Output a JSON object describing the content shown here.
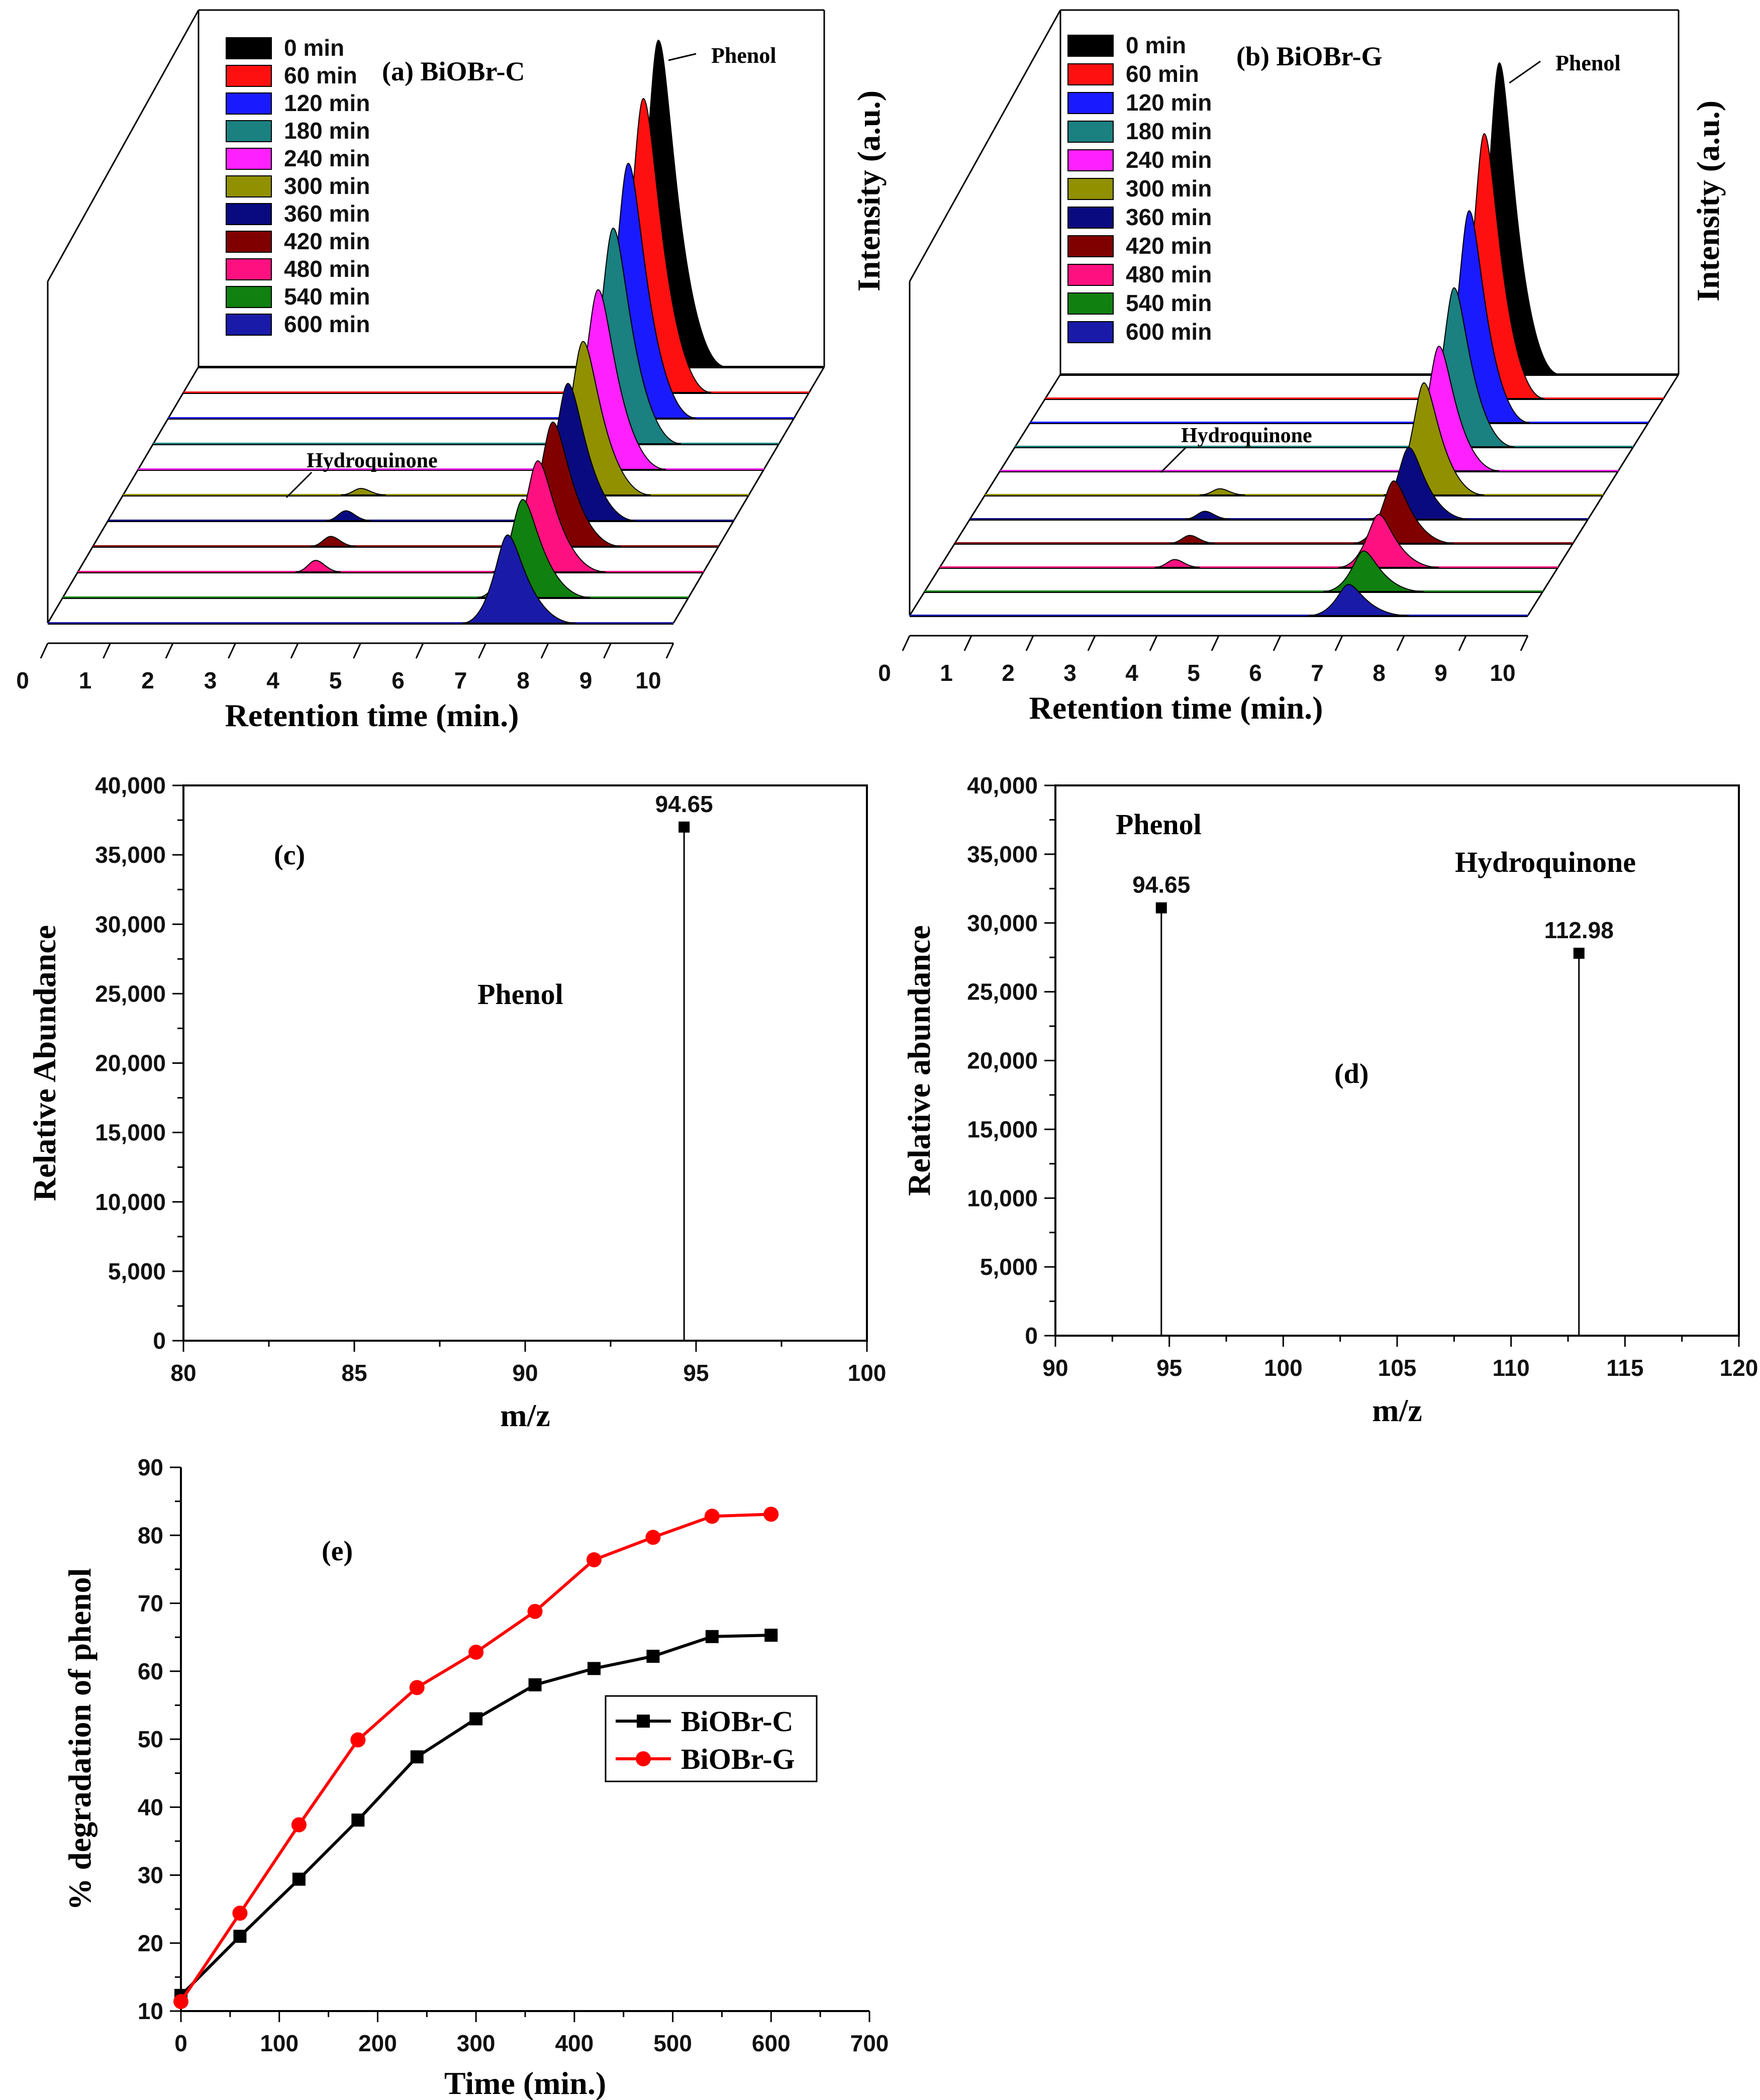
{
  "chart_data": [
    {
      "id": "a",
      "type": "waterfall-chromatogram",
      "title": "(a) BiOBr-C",
      "xlabel": "Retention time (min.)",
      "ylabel": "Intensity (a.u.)",
      "xlim": [
        0,
        10
      ],
      "xticks": [
        "0",
        "1",
        "2",
        "3",
        "4",
        "5",
        "6",
        "7",
        "8",
        "9",
        "10"
      ],
      "peak_labels": [
        "Phenol",
        "Hydroquinone"
      ],
      "series": [
        {
          "name": "0 min",
          "color": "#000000",
          "phenol_rt": 7.35,
          "phenol_height": 1.0,
          "hq_rt": null,
          "hq_height": 0
        },
        {
          "name": "60 min",
          "color": "#ff1010",
          "phenol_rt": 7.35,
          "phenol_height": 0.9,
          "hq_rt": null,
          "hq_height": 0
        },
        {
          "name": "120 min",
          "color": "#1a1aff",
          "phenol_rt": 7.35,
          "phenol_height": 0.78,
          "hq_rt": null,
          "hq_height": 0
        },
        {
          "name": "180 min",
          "color": "#1a8080",
          "phenol_rt": 7.35,
          "phenol_height": 0.66,
          "hq_rt": null,
          "hq_height": 0
        },
        {
          "name": "240 min",
          "color": "#ff20ff",
          "phenol_rt": 7.35,
          "phenol_height": 0.55,
          "hq_rt": null,
          "hq_height": 0
        },
        {
          "name": "300 min",
          "color": "#909000",
          "phenol_rt": 7.35,
          "phenol_height": 0.47,
          "hq_rt": 3.8,
          "hq_height": 0.02
        },
        {
          "name": "360 min",
          "color": "#0a0a80",
          "phenol_rt": 7.35,
          "phenol_height": 0.42,
          "hq_rt": 3.8,
          "hq_height": 0.03
        },
        {
          "name": "420 min",
          "color": "#800000",
          "phenol_rt": 7.35,
          "phenol_height": 0.38,
          "hq_rt": 3.8,
          "hq_height": 0.03
        },
        {
          "name": "480 min",
          "color": "#ff1080",
          "phenol_rt": 7.35,
          "phenol_height": 0.34,
          "hq_rt": 3.8,
          "hq_height": 0.035
        },
        {
          "name": "540 min",
          "color": "#108010",
          "phenol_rt": 7.35,
          "phenol_height": 0.3,
          "hq_rt": null,
          "hq_height": 0
        },
        {
          "name": "600 min",
          "color": "#1a1aa8",
          "phenol_rt": 7.35,
          "phenol_height": 0.27,
          "hq_rt": null,
          "hq_height": 0
        }
      ]
    },
    {
      "id": "b",
      "type": "waterfall-chromatogram",
      "title": "(b) BiOBr-G",
      "xlabel": "Retention time (min.)",
      "ylabel": "Intensity (a.u.)",
      "xlim": [
        0,
        10
      ],
      "xticks": [
        "0",
        "1",
        "2",
        "3",
        "4",
        "5",
        "6",
        "7",
        "8",
        "9",
        "10"
      ],
      "peak_labels": [
        "Phenol",
        "Hydroquinone"
      ],
      "series": [
        {
          "name": "0 min",
          "color": "#000000",
          "phenol_rt": 7.1,
          "phenol_height": 1.0,
          "hq_rt": null,
          "hq_height": 0
        },
        {
          "name": "60 min",
          "color": "#ff1010",
          "phenol_rt": 7.1,
          "phenol_height": 0.85,
          "hq_rt": null,
          "hq_height": 0
        },
        {
          "name": "120 min",
          "color": "#1a1aff",
          "phenol_rt": 7.1,
          "phenol_height": 0.68,
          "hq_rt": null,
          "hq_height": 0
        },
        {
          "name": "180 min",
          "color": "#1a8080",
          "phenol_rt": 7.1,
          "phenol_height": 0.51,
          "hq_rt": null,
          "hq_height": 0
        },
        {
          "name": "240 min",
          "color": "#ff20ff",
          "phenol_rt": 7.1,
          "phenol_height": 0.4,
          "hq_rt": null,
          "hq_height": 0
        },
        {
          "name": "300 min",
          "color": "#909000",
          "phenol_rt": 7.1,
          "phenol_height": 0.36,
          "hq_rt": 3.8,
          "hq_height": 0.02
        },
        {
          "name": "360 min",
          "color": "#0a0a80",
          "phenol_rt": 7.1,
          "phenol_height": 0.23,
          "hq_rt": 3.8,
          "hq_height": 0.025
        },
        {
          "name": "420 min",
          "color": "#800000",
          "phenol_rt": 7.1,
          "phenol_height": 0.2,
          "hq_rt": 3.8,
          "hq_height": 0.025
        },
        {
          "name": "480 min",
          "color": "#ff1080",
          "phenol_rt": 7.1,
          "phenol_height": 0.17,
          "hq_rt": 3.8,
          "hq_height": 0.025
        },
        {
          "name": "540 min",
          "color": "#108010",
          "phenol_rt": 7.1,
          "phenol_height": 0.13,
          "hq_rt": null,
          "hq_height": 0
        },
        {
          "name": "600 min",
          "color": "#1a1aa8",
          "phenol_rt": 7.1,
          "phenol_height": 0.1,
          "hq_rt": null,
          "hq_height": 0
        }
      ]
    },
    {
      "id": "c",
      "type": "stick",
      "panel_label": "(c)",
      "xlabel": "m/z",
      "ylabel": "Relative Abundance",
      "xlim": [
        80,
        100
      ],
      "ylim": [
        0,
        40000
      ],
      "xticks": [
        "80",
        "85",
        "90",
        "95",
        "100"
      ],
      "yticks": [
        "0",
        "5,000",
        "10,000",
        "15,000",
        "20,000",
        "25,000",
        "30,000",
        "35,000",
        "40,000"
      ],
      "peaks": [
        {
          "x": 94.65,
          "y": 37000,
          "label": "94.65"
        }
      ],
      "annotations": [
        "Phenol"
      ]
    },
    {
      "id": "d",
      "type": "stick",
      "panel_label": "(d)",
      "xlabel": "m/z",
      "ylabel": "Relative abundance",
      "xlim": [
        90,
        120
      ],
      "ylim": [
        0,
        40000
      ],
      "xticks": [
        "90",
        "95",
        "100",
        "105",
        "110",
        "115",
        "120"
      ],
      "yticks": [
        "0",
        "5,000",
        "10,000",
        "15,000",
        "20,000",
        "25,000",
        "30,000",
        "35,000",
        "40,000"
      ],
      "peaks": [
        {
          "x": 94.65,
          "y": 31100,
          "label": "94.65"
        },
        {
          "x": 112.98,
          "y": 27800,
          "label": "112.98"
        }
      ],
      "annotations": [
        "Phenol",
        "Hydroquinone"
      ]
    },
    {
      "id": "e",
      "type": "line",
      "panel_label": "(e)",
      "xlabel": "Time (min.)",
      "ylabel": "% degradation of phenol",
      "xlim": [
        0,
        700
      ],
      "ylim": [
        10,
        90
      ],
      "xticks": [
        "0",
        "100",
        "200",
        "300",
        "400",
        "500",
        "600",
        "700"
      ],
      "yticks": [
        "10",
        "20",
        "30",
        "40",
        "50",
        "60",
        "70",
        "80",
        "90"
      ],
      "x": [
        0,
        60,
        120,
        180,
        240,
        300,
        360,
        420,
        480,
        540,
        600
      ],
      "series": [
        {
          "name": "BiOBr-C",
          "color": "#000000",
          "marker": "square",
          "values": [
            12.3,
            21.0,
            29.4,
            38.1,
            47.4,
            53.0,
            58.0,
            60.4,
            62.2,
            65.1,
            65.3
          ]
        },
        {
          "name": "BiOBr-G",
          "color": "#ff0000",
          "marker": "circle",
          "values": [
            11.4,
            24.4,
            37.4,
            49.9,
            57.6,
            62.8,
            68.8,
            76.4,
            79.7,
            82.8,
            83.1
          ]
        }
      ]
    }
  ]
}
